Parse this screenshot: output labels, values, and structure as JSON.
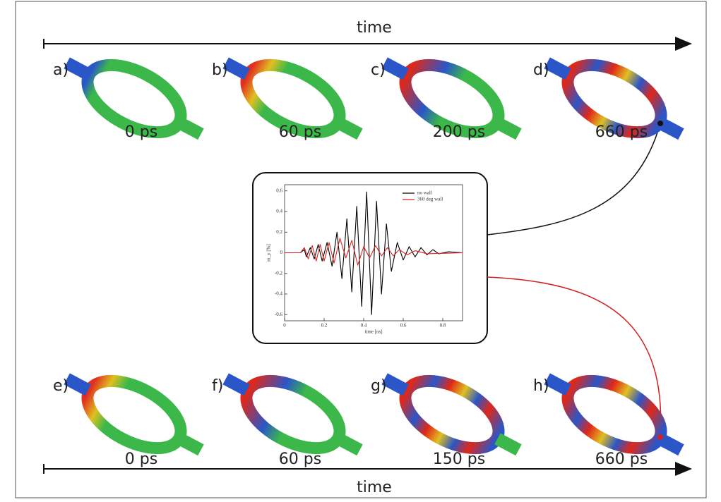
{
  "top_axis_label": "time",
  "bottom_axis_label": "time",
  "panels": [
    {
      "label": "a)",
      "time": "0 ps"
    },
    {
      "label": "b)",
      "time": "60 ps"
    },
    {
      "label": "c)",
      "time": "200 ps"
    },
    {
      "label": "d)",
      "time": "660 ps"
    },
    {
      "label": "e)",
      "time": "0 ps"
    },
    {
      "label": "f)",
      "time": "60 ps"
    },
    {
      "label": "g)",
      "time": "150 ps"
    },
    {
      "label": "h)",
      "time": "660 ps"
    }
  ],
  "chart_data": {
    "type": "line",
    "x_label": "time [ns]",
    "y_label": "m_y [%]",
    "xlim": [
      0,
      0.9
    ],
    "ylim": [
      -0.66,
      0.66
    ],
    "xticks": [
      0,
      0.2,
      0.4,
      0.6,
      0.8
    ],
    "yticks": [
      -0.6,
      -0.4,
      -0.2,
      0,
      0.2,
      0.4,
      0.6
    ],
    "legend": "top-right",
    "series": [
      {
        "name": "no wall",
        "color": "#000000",
        "x": [
          0,
          0.08,
          0.1,
          0.11,
          0.13,
          0.15,
          0.17,
          0.19,
          0.215,
          0.24,
          0.265,
          0.29,
          0.315,
          0.34,
          0.365,
          0.39,
          0.415,
          0.44,
          0.465,
          0.49,
          0.515,
          0.54,
          0.57,
          0.6,
          0.63,
          0.66,
          0.69,
          0.72,
          0.75,
          0.78,
          0.83,
          0.9
        ],
        "values": [
          0,
          0,
          0.03,
          -0.04,
          0.05,
          -0.06,
          0.08,
          -0.08,
          0.1,
          -0.13,
          0.2,
          -0.25,
          0.33,
          -0.38,
          0.45,
          -0.52,
          0.59,
          -0.6,
          0.5,
          -0.4,
          0.28,
          -0.18,
          0.1,
          -0.07,
          0.06,
          -0.04,
          0.05,
          -0.02,
          0.03,
          -0.01,
          0.01,
          0
        ]
      },
      {
        "name": "360 deg wall",
        "color": "#e02020",
        "x": [
          0,
          0.08,
          0.1,
          0.12,
          0.14,
          0.16,
          0.18,
          0.2,
          0.225,
          0.25,
          0.28,
          0.31,
          0.34,
          0.37,
          0.4,
          0.43,
          0.46,
          0.49,
          0.52,
          0.55,
          0.58,
          0.62,
          0.66,
          0.72,
          0.9
        ],
        "values": [
          0,
          0,
          0.05,
          -0.06,
          0.07,
          -0.08,
          0.08,
          -0.08,
          0.1,
          -0.1,
          0.14,
          -0.05,
          0.12,
          -0.12,
          0.06,
          -0.05,
          0.07,
          -0.03,
          0.05,
          -0.03,
          0.03,
          -0.02,
          0.02,
          -0.01,
          0
        ]
      }
    ]
  }
}
